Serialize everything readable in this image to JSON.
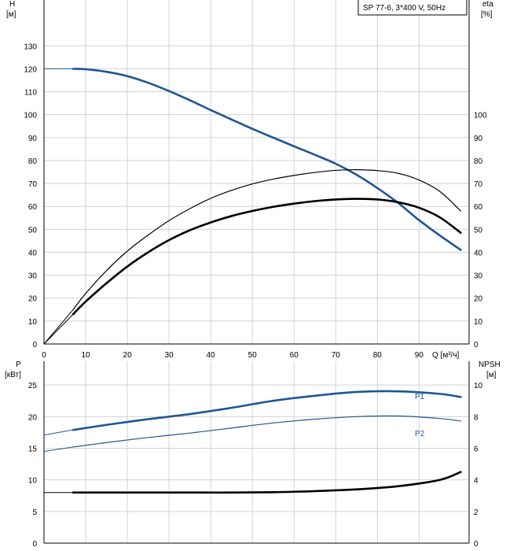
{
  "chart_data": [
    {
      "type": "line",
      "legend_text": "SP 77-6, 3*400 V, 50Hz",
      "legend_placement": "top-right",
      "grid": true,
      "x_axis": {
        "label": "Q [м³/ч]",
        "ticks": [
          "0",
          "10",
          "20",
          "30",
          "40",
          "50",
          "60",
          "70",
          "80",
          "90"
        ],
        "range": [
          0,
          102
        ]
      },
      "y_left_axis": {
        "label_line1": "H",
        "label_line2": "[м]",
        "ticks": [
          "0",
          "10",
          "20",
          "30",
          "40",
          "50",
          "60",
          "70",
          "80",
          "90",
          "100",
          "110",
          "120",
          "130"
        ],
        "range": [
          0,
          150
        ]
      },
      "y_right_axis": {
        "label_line1": "eta",
        "label_line2": "[%]",
        "ticks": [
          "0",
          "10",
          "20",
          "30",
          "40",
          "50",
          "60",
          "70",
          "80",
          "90",
          "100"
        ],
        "range": [
          0,
          150
        ]
      },
      "series": [
        {
          "axis": "left",
          "color": "#1f5594",
          "width": 2.6,
          "extension": {
            "x": [
              0,
              7
            ],
            "y": [
              120,
              120
            ]
          },
          "x": [
            7,
            10,
            15,
            20,
            25,
            30,
            35,
            40,
            45,
            50,
            55,
            60,
            65,
            70,
            75,
            80,
            85,
            90,
            95,
            100
          ],
          "y": [
            120,
            119.8,
            118.7,
            116.8,
            113.9,
            110.3,
            106.3,
            102,
            97.9,
            93.8,
            90,
            86.2,
            82.5,
            78.6,
            73.8,
            68,
            61.5,
            54,
            47.3,
            41
          ]
        },
        {
          "axis": "right",
          "color": "#000000",
          "width": 1.2,
          "extension": {
            "x": [
              0,
              7
            ],
            "y": [
              0,
              15
            ]
          },
          "x": [
            7,
            10,
            15,
            20,
            25,
            30,
            35,
            40,
            45,
            50,
            55,
            60,
            65,
            70,
            75,
            80,
            85,
            90,
            95,
            100
          ],
          "y": [
            15,
            22,
            32,
            40.5,
            47.5,
            53.8,
            59,
            63.5,
            67,
            69.8,
            71.9,
            73.5,
            74.8,
            75.7,
            76,
            75.6,
            74.4,
            71.5,
            66.5,
            58
          ]
        },
        {
          "axis": "right",
          "color": "#000000",
          "width": 2.6,
          "extension": {
            "x": [
              0,
              7
            ],
            "y": [
              0,
              13
            ]
          },
          "x": [
            7,
            10,
            15,
            20,
            25,
            30,
            35,
            40,
            45,
            50,
            55,
            60,
            65,
            70,
            75,
            80,
            85,
            90,
            95,
            100
          ],
          "y": [
            13,
            18.5,
            26.5,
            33.8,
            40,
            45.3,
            49.6,
            53,
            55.8,
            58,
            59.8,
            61.2,
            62.3,
            63,
            63.3,
            63,
            61.8,
            59.4,
            55.2,
            48.5
          ]
        }
      ]
    },
    {
      "type": "line",
      "grid": true,
      "x_axis": {
        "ticks": [
          "0",
          "10",
          "20",
          "30",
          "40",
          "50",
          "60",
          "70",
          "80",
          "90"
        ],
        "range": [
          0,
          102
        ]
      },
      "y_left_axis": {
        "label_line1": "P",
        "label_line2": "[кВт]",
        "ticks": [
          "0",
          "5",
          "10",
          "15",
          "20",
          "25"
        ],
        "range": [
          0,
          28.75
        ]
      },
      "y_right_axis": {
        "label_line1": "NPSH",
        "label_line2": "[м]",
        "ticks": [
          "0",
          "2",
          "4",
          "6",
          "8",
          "10"
        ],
        "range": [
          0,
          11.5
        ]
      },
      "series": [
        {
          "name": "P1",
          "axis": "left",
          "color": "#1f5594",
          "width": 2.6,
          "extension": {
            "x": [
              0,
              7
            ],
            "y": [
              17.1,
              17.9
            ]
          },
          "x": [
            7,
            15,
            25,
            35,
            45,
            55,
            65,
            75,
            85,
            95,
            100
          ],
          "y": [
            17.9,
            18.7,
            19.6,
            20.4,
            21.4,
            22.5,
            23.3,
            23.9,
            24,
            23.6,
            23.1
          ]
        },
        {
          "name": "P2",
          "axis": "left",
          "color": "#1f5594",
          "width": 1.2,
          "extension": {
            "x": [
              0,
              7
            ],
            "y": [
              14.5,
              15.2
            ]
          },
          "x": [
            7,
            15,
            25,
            35,
            45,
            55,
            65,
            75,
            85,
            95,
            100
          ],
          "y": [
            15.2,
            15.9,
            16.7,
            17.4,
            18.2,
            19,
            19.6,
            20,
            20.1,
            19.7,
            19.3
          ]
        },
        {
          "axis": "right",
          "color": "#000000",
          "width": 2.6,
          "extension": {
            "x": [
              0,
              7
            ],
            "y": [
              3.2,
              3.2
            ]
          },
          "x": [
            7,
            15,
            25,
            35,
            45,
            55,
            65,
            75,
            85,
            95,
            100
          ],
          "y": [
            3.2,
            3.2,
            3.2,
            3.2,
            3.2,
            3.22,
            3.29,
            3.4,
            3.6,
            4,
            4.5
          ]
        }
      ]
    }
  ]
}
